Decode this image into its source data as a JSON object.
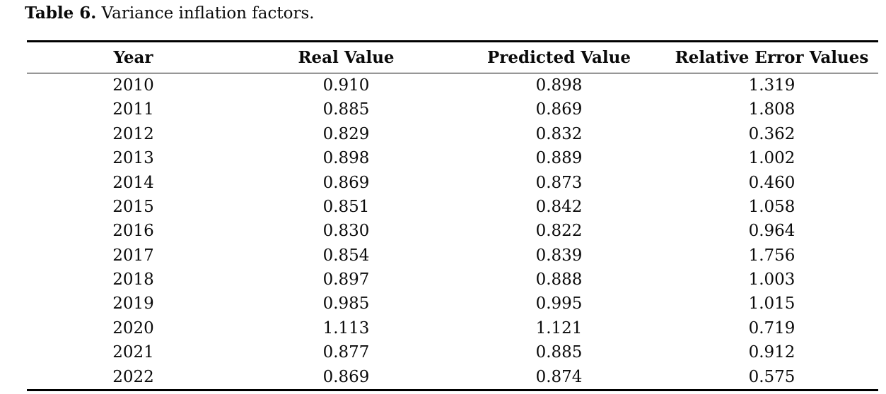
{
  "caption": {
    "label": "Table 6.",
    "text": "Variance inflation factors."
  },
  "table": {
    "columns": [
      "Year",
      "Real Value",
      "Predicted Value",
      "Relative Error Values"
    ],
    "rows": [
      [
        "2010",
        "0.910",
        "0.898",
        "1.319"
      ],
      [
        "2011",
        "0.885",
        "0.869",
        "1.808"
      ],
      [
        "2012",
        "0.829",
        "0.832",
        "0.362"
      ],
      [
        "2013",
        "0.898",
        "0.889",
        "1.002"
      ],
      [
        "2014",
        "0.869",
        "0.873",
        "0.460"
      ],
      [
        "2015",
        "0.851",
        "0.842",
        "1.058"
      ],
      [
        "2016",
        "0.830",
        "0.822",
        "0.964"
      ],
      [
        "2017",
        "0.854",
        "0.839",
        "1.756"
      ],
      [
        "2018",
        "0.897",
        "0.888",
        "1.003"
      ],
      [
        "2019",
        "0.985",
        "0.995",
        "1.015"
      ],
      [
        "2020",
        "1.113",
        "1.121",
        "0.719"
      ],
      [
        "2021",
        "0.877",
        "0.885",
        "0.912"
      ],
      [
        "2022",
        "0.869",
        "0.874",
        "0.575"
      ]
    ]
  },
  "colors": {
    "text": "#0a0a0a",
    "rule": "#000000",
    "background": "#ffffff"
  }
}
